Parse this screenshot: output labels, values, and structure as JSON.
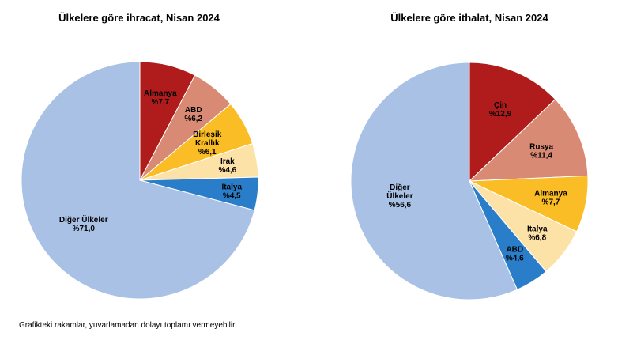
{
  "note": "Grafikteki rakamlar, yuvarlamadan dolayı toplamı vermeyebilir",
  "chart_data": [
    {
      "type": "pie",
      "title": "Ülkelere göre ihracat, Nisan 2024",
      "slices": [
        {
          "label": [
            "Almanya"
          ],
          "value": 7.7,
          "value_label": "%7,7",
          "color": "#b01c1c"
        },
        {
          "label": [
            "ABD"
          ],
          "value": 6.2,
          "value_label": "%6,2",
          "color": "#d98a74"
        },
        {
          "label": [
            "Birleşik",
            "Krallık"
          ],
          "value": 6.1,
          "value_label": "%6,1",
          "color": "#fbbd25"
        },
        {
          "label": [
            "Irak"
          ],
          "value": 4.6,
          "value_label": "%4,6",
          "color": "#fde2a8"
        },
        {
          "label": [
            "İtalya"
          ],
          "value": 4.5,
          "value_label": "%4,5",
          "color": "#2a7dc8"
        },
        {
          "label": [
            "Diğer Ülkeler"
          ],
          "value": 71.0,
          "value_label": "%71,0",
          "color": "#a8c1e4"
        }
      ]
    },
    {
      "type": "pie",
      "title": "Ülkelere göre ithalat, Nisan 2024",
      "slices": [
        {
          "label": [
            "Çin"
          ],
          "value": 12.9,
          "value_label": "%12,9",
          "color": "#b01c1c"
        },
        {
          "label": [
            "Rusya"
          ],
          "value": 11.4,
          "value_label": "%11,4",
          "color": "#d98a74"
        },
        {
          "label": [
            "Almanya"
          ],
          "value": 7.7,
          "value_label": "%7,7",
          "color": "#fbbd25"
        },
        {
          "label": [
            "İtalya"
          ],
          "value": 6.8,
          "value_label": "%6,8",
          "color": "#fde2a8"
        },
        {
          "label": [
            "ABD"
          ],
          "value": 4.6,
          "value_label": "%4,6",
          "color": "#2a7dc8"
        },
        {
          "label": [
            "Diğer",
            "Ülkeler"
          ],
          "value": 56.6,
          "value_label": "%56,6",
          "color": "#a8c1e4"
        }
      ]
    }
  ]
}
